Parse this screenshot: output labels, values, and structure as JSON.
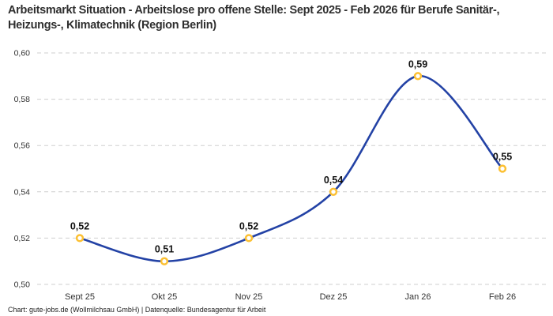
{
  "title": "Arbeitsmarkt Situation - Arbeitslose pro offene Stelle: Sept 2025 - Feb 2026 für Berufe Sanitär-, Heizungs-, Klimatechnik (Region Berlin)",
  "footer": "Chart: gute-jobs.de (Wollmilchsau GmbH) | Datenquelle: Bundesagentur für Arbeit",
  "chart_data": {
    "type": "line",
    "title": "Arbeitsmarkt Situation - Arbeitslose pro offene Stelle: Sept 2025 - Feb 2026 für Berufe Sanitär-, Heizungs-, Klimatechnik (Region Berlin)",
    "categories": [
      "Sept 25",
      "Okt 25",
      "Nov 25",
      "Dez 25",
      "Jan 26",
      "Feb 26"
    ],
    "values": [
      0.52,
      0.51,
      0.52,
      0.54,
      0.59,
      0.55
    ],
    "value_labels": [
      "0,52",
      "0,51",
      "0,52",
      "0,54",
      "0,59",
      "0,55"
    ],
    "xlabel": "",
    "ylabel": "",
    "ylim": [
      0.5,
      0.6
    ],
    "yticks": [
      0.5,
      0.52,
      0.54,
      0.56,
      0.58,
      0.6
    ],
    "ytick_labels": [
      "0,50",
      "0,52",
      "0,54",
      "0,56",
      "0,58",
      "0,60"
    ],
    "grid": "horizontal-dashed",
    "legend": "none",
    "line_color": "#2342a5",
    "marker_ring_color": "#fcc033",
    "marker_fill_color": "#ffffff",
    "gridline_color": "#cfcfcf",
    "axis_text_color": "#333333",
    "point_label_color": "#111111"
  }
}
